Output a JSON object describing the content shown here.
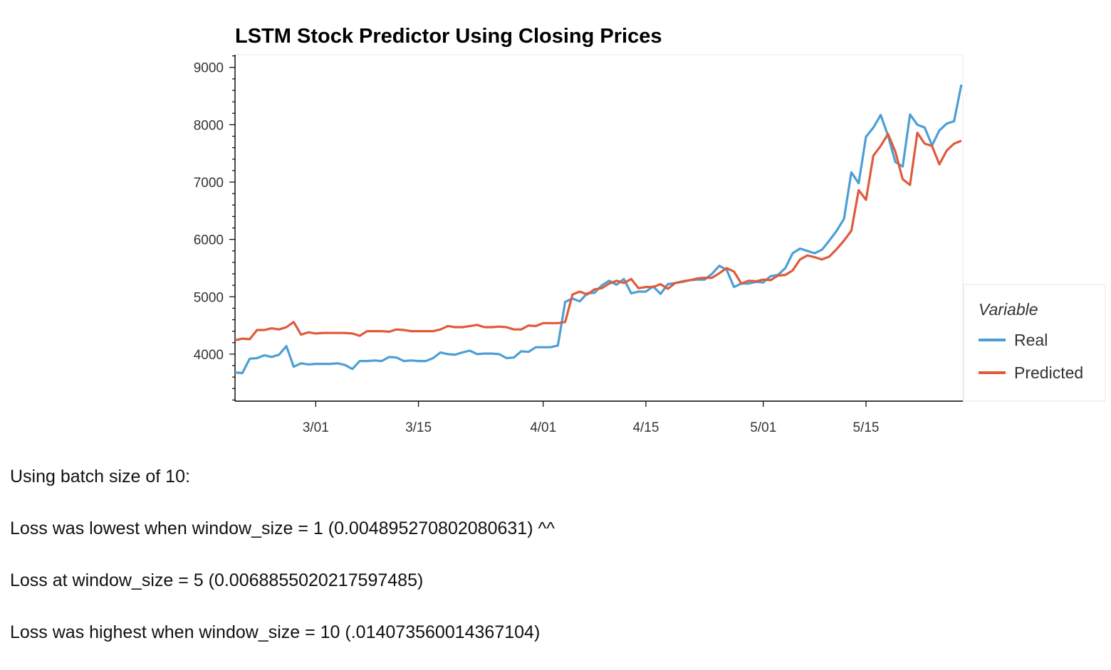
{
  "chart_data": {
    "type": "line",
    "title": "LSTM Stock Predictor Using Closing Prices",
    "xlabel": "",
    "ylabel": "",
    "x_range": [
      "2/19",
      "5/26"
    ],
    "ylim": [
      3180,
      9220
    ],
    "x_ticks": [
      "3/01",
      "3/15",
      "4/01",
      "4/15",
      "5/01",
      "5/15"
    ],
    "y_ticks": [
      4000,
      5000,
      6000,
      7000,
      8000,
      9000
    ],
    "grid": false,
    "legend": {
      "title": "Variable",
      "placement": "right"
    },
    "series": [
      {
        "name": "Real",
        "color": "#4c9fd5",
        "points": [
          [
            "2/19",
            3680
          ],
          [
            "2/20",
            3670
          ],
          [
            "2/21",
            3920
          ],
          [
            "2/22",
            3930
          ],
          [
            "2/23",
            3980
          ],
          [
            "2/24",
            3950
          ],
          [
            "2/25",
            3990
          ],
          [
            "2/26",
            4140
          ],
          [
            "2/27",
            3780
          ],
          [
            "2/28",
            3840
          ],
          [
            "2/29",
            3820
          ],
          [
            "3/01",
            3830
          ],
          [
            "3/02",
            3830
          ],
          [
            "3/03",
            3830
          ],
          [
            "3/04",
            3840
          ],
          [
            "3/05",
            3810
          ],
          [
            "3/06",
            3740
          ],
          [
            "3/07",
            3880
          ],
          [
            "3/08",
            3880
          ],
          [
            "3/09",
            3890
          ],
          [
            "3/10",
            3880
          ],
          [
            "3/11",
            3950
          ],
          [
            "3/12",
            3940
          ],
          [
            "3/13",
            3880
          ],
          [
            "3/14",
            3890
          ],
          [
            "3/15",
            3880
          ],
          [
            "3/16",
            3880
          ],
          [
            "3/17",
            3930
          ],
          [
            "3/18",
            4030
          ],
          [
            "3/19",
            4000
          ],
          [
            "3/20",
            3990
          ],
          [
            "3/21",
            4030
          ],
          [
            "3/22",
            4060
          ],
          [
            "3/23",
            4000
          ],
          [
            "3/24",
            4010
          ],
          [
            "3/25",
            4010
          ],
          [
            "3/26",
            4000
          ],
          [
            "3/27",
            3930
          ],
          [
            "3/28",
            3940
          ],
          [
            "3/29",
            4050
          ],
          [
            "3/30",
            4040
          ],
          [
            "3/31",
            4120
          ],
          [
            "4/01",
            4120
          ],
          [
            "4/02",
            4120
          ],
          [
            "4/03",
            4150
          ],
          [
            "4/04",
            4910
          ],
          [
            "4/05",
            4970
          ],
          [
            "4/06",
            4920
          ],
          [
            "4/07",
            5060
          ],
          [
            "4/08",
            5070
          ],
          [
            "4/09",
            5200
          ],
          [
            "4/10",
            5280
          ],
          [
            "4/11",
            5210
          ],
          [
            "4/12",
            5310
          ],
          [
            "4/13",
            5060
          ],
          [
            "4/14",
            5090
          ],
          [
            "4/15",
            5090
          ],
          [
            "4/16",
            5180
          ],
          [
            "4/17",
            5050
          ],
          [
            "4/18",
            5220
          ],
          [
            "4/19",
            5240
          ],
          [
            "4/20",
            5260
          ],
          [
            "4/21",
            5290
          ],
          [
            "4/22",
            5300
          ],
          [
            "4/23",
            5300
          ],
          [
            "4/24",
            5400
          ],
          [
            "4/25",
            5540
          ],
          [
            "4/26",
            5470
          ],
          [
            "4/27",
            5170
          ],
          [
            "4/28",
            5230
          ],
          [
            "4/29",
            5230
          ],
          [
            "4/30",
            5260
          ],
          [
            "5/01",
            5250
          ],
          [
            "5/02",
            5360
          ],
          [
            "5/03",
            5380
          ],
          [
            "5/04",
            5500
          ],
          [
            "5/05",
            5760
          ],
          [
            "5/06",
            5840
          ],
          [
            "5/07",
            5800
          ],
          [
            "5/08",
            5760
          ],
          [
            "5/09",
            5820
          ],
          [
            "5/10",
            5980
          ],
          [
            "5/11",
            6150
          ],
          [
            "5/12",
            6360
          ],
          [
            "5/13",
            7170
          ],
          [
            "5/14",
            6980
          ],
          [
            "5/15",
            7790
          ],
          [
            "5/16",
            7950
          ],
          [
            "5/17",
            8170
          ],
          [
            "5/18",
            7810
          ],
          [
            "5/19",
            7350
          ],
          [
            "5/20",
            7270
          ],
          [
            "5/21",
            8180
          ],
          [
            "5/22",
            8000
          ],
          [
            "5/23",
            7950
          ],
          [
            "5/24",
            7640
          ],
          [
            "5/25",
            7900
          ],
          [
            "5/26",
            8020
          ],
          [
            "5/27",
            8060
          ],
          [
            "5/28",
            8700
          ]
        ]
      },
      {
        "name": "Predicted",
        "color": "#e05a3c",
        "points": [
          [
            "2/19",
            4240
          ],
          [
            "2/20",
            4270
          ],
          [
            "2/21",
            4260
          ],
          [
            "2/22",
            4420
          ],
          [
            "2/23",
            4420
          ],
          [
            "2/24",
            4450
          ],
          [
            "2/25",
            4430
          ],
          [
            "2/26",
            4470
          ],
          [
            "2/27",
            4560
          ],
          [
            "2/28",
            4340
          ],
          [
            "2/29",
            4380
          ],
          [
            "3/01",
            4360
          ],
          [
            "3/02",
            4370
          ],
          [
            "3/03",
            4370
          ],
          [
            "3/04",
            4370
          ],
          [
            "3/05",
            4370
          ],
          [
            "3/06",
            4360
          ],
          [
            "3/07",
            4320
          ],
          [
            "3/08",
            4400
          ],
          [
            "3/09",
            4400
          ],
          [
            "3/10",
            4400
          ],
          [
            "3/11",
            4390
          ],
          [
            "3/12",
            4430
          ],
          [
            "3/13",
            4420
          ],
          [
            "3/14",
            4400
          ],
          [
            "3/15",
            4400
          ],
          [
            "3/16",
            4400
          ],
          [
            "3/17",
            4400
          ],
          [
            "3/18",
            4430
          ],
          [
            "3/19",
            4490
          ],
          [
            "3/20",
            4470
          ],
          [
            "3/21",
            4470
          ],
          [
            "3/22",
            4490
          ],
          [
            "3/23",
            4510
          ],
          [
            "3/24",
            4470
          ],
          [
            "3/25",
            4470
          ],
          [
            "3/26",
            4480
          ],
          [
            "3/27",
            4470
          ],
          [
            "3/28",
            4430
          ],
          [
            "3/29",
            4430
          ],
          [
            "3/30",
            4500
          ],
          [
            "3/31",
            4490
          ],
          [
            "4/01",
            4540
          ],
          [
            "4/02",
            4540
          ],
          [
            "4/03",
            4540
          ],
          [
            "4/04",
            4560
          ],
          [
            "4/05",
            5040
          ],
          [
            "4/06",
            5090
          ],
          [
            "4/07",
            5040
          ],
          [
            "4/08",
            5130
          ],
          [
            "4/09",
            5150
          ],
          [
            "4/10",
            5230
          ],
          [
            "4/11",
            5280
          ],
          [
            "4/12",
            5240
          ],
          [
            "4/13",
            5310
          ],
          [
            "4/14",
            5150
          ],
          [
            "4/15",
            5170
          ],
          [
            "4/16",
            5170
          ],
          [
            "4/17",
            5220
          ],
          [
            "4/18",
            5140
          ],
          [
            "4/19",
            5240
          ],
          [
            "4/20",
            5270
          ],
          [
            "4/21",
            5290
          ],
          [
            "4/22",
            5320
          ],
          [
            "4/23",
            5330
          ],
          [
            "4/24",
            5330
          ],
          [
            "4/25",
            5410
          ],
          [
            "4/26",
            5500
          ],
          [
            "4/27",
            5440
          ],
          [
            "4/28",
            5230
          ],
          [
            "4/29",
            5280
          ],
          [
            "4/30",
            5270
          ],
          [
            "5/01",
            5300
          ],
          [
            "5/02",
            5290
          ],
          [
            "5/03",
            5370
          ],
          [
            "5/04",
            5380
          ],
          [
            "5/05",
            5460
          ],
          [
            "5/06",
            5650
          ],
          [
            "5/07",
            5720
          ],
          [
            "5/08",
            5690
          ],
          [
            "5/09",
            5650
          ],
          [
            "5/10",
            5700
          ],
          [
            "5/11",
            5830
          ],
          [
            "5/12",
            5980
          ],
          [
            "5/13",
            6150
          ],
          [
            "5/14",
            6860
          ],
          [
            "5/15",
            6690
          ],
          [
            "5/16",
            7460
          ],
          [
            "5/17",
            7630
          ],
          [
            "5/18",
            7840
          ],
          [
            "5/19",
            7530
          ],
          [
            "5/20",
            7050
          ],
          [
            "5/21",
            6950
          ],
          [
            "5/22",
            7860
          ],
          [
            "5/23",
            7670
          ],
          [
            "5/24",
            7630
          ],
          [
            "5/25",
            7310
          ],
          [
            "5/26",
            7550
          ],
          [
            "5/27",
            7670
          ],
          [
            "5/28",
            7720
          ]
        ]
      }
    ]
  },
  "notes": {
    "line1": "Using batch size of 10:",
    "line2": "Loss was lowest when window_size = 1 (0.004895270802080631) ^^",
    "line3": "Loss at window_size = 5 (0.006885502021759748​5)",
    "line4": "Loss was highest when window_size = 10 (.014073560014367104)"
  }
}
